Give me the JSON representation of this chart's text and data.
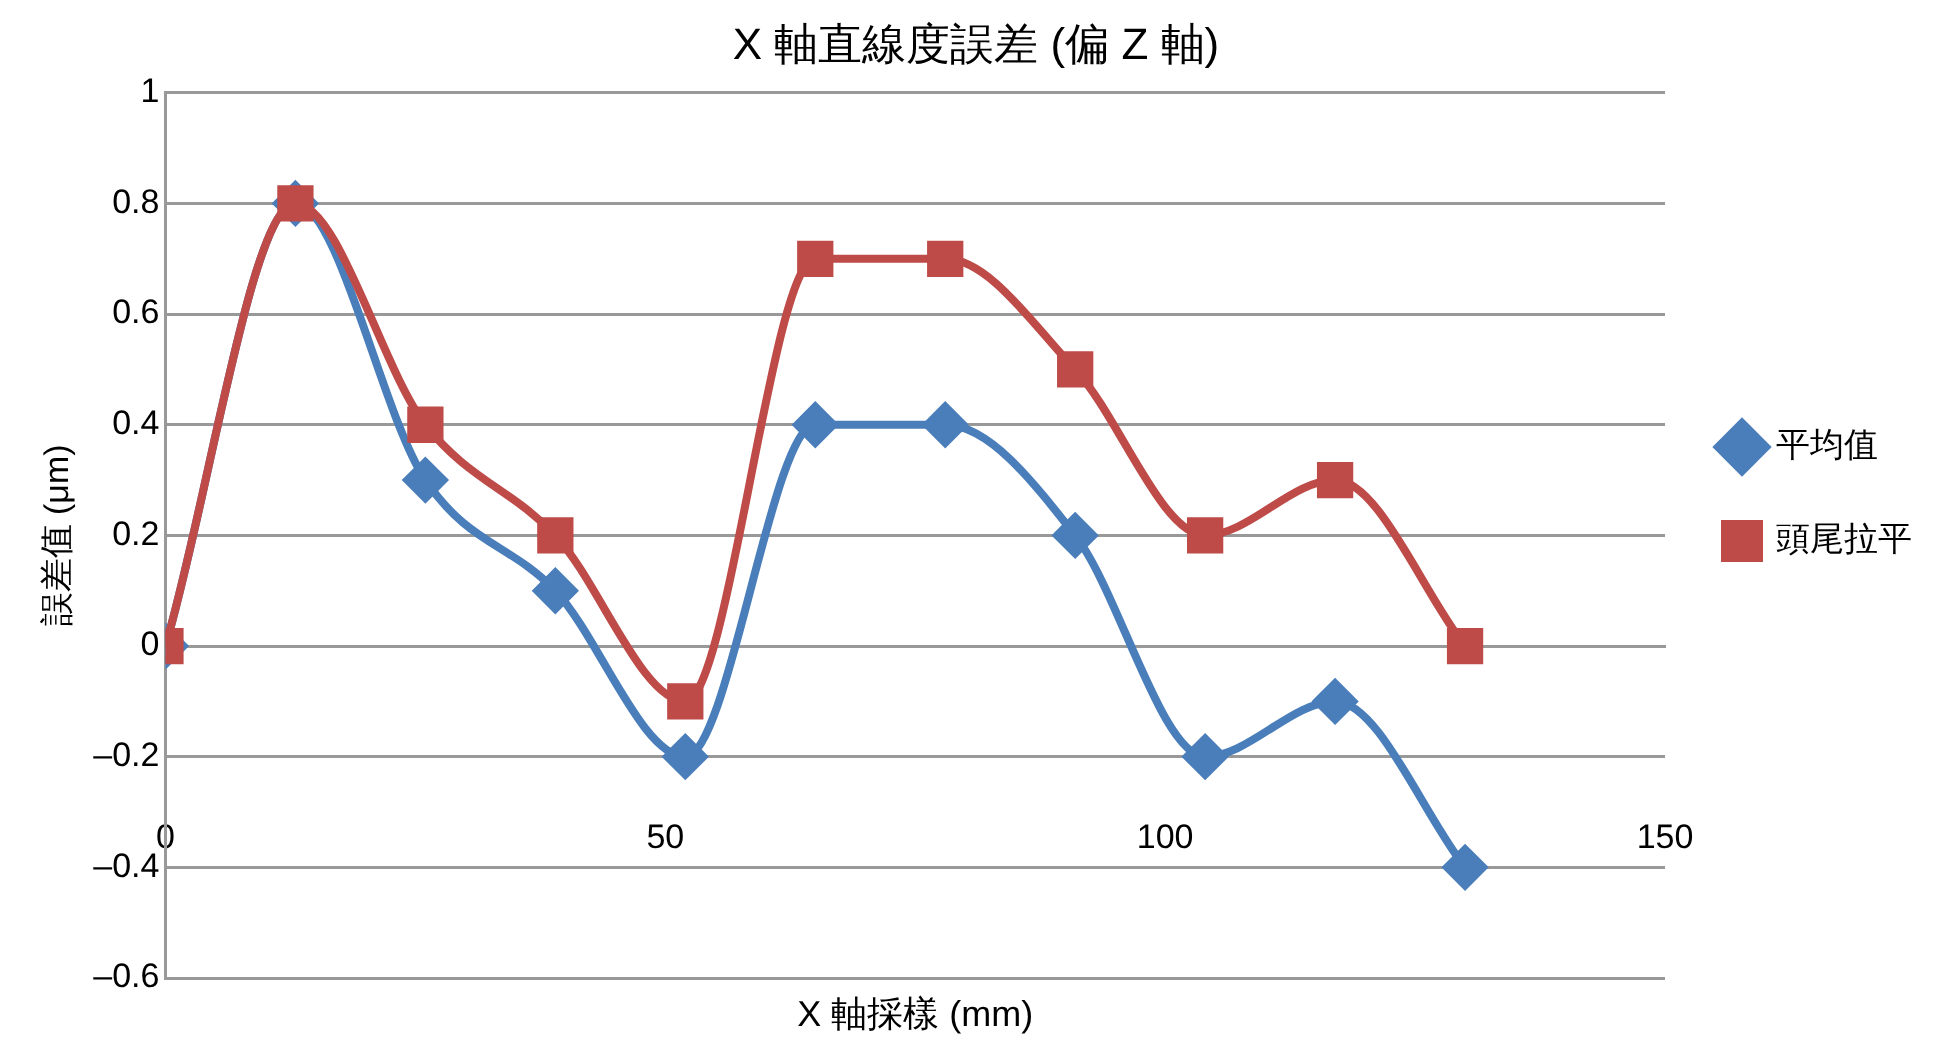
{
  "chart_data": {
    "type": "line",
    "title": "X 軸直線度誤差 (偏 Z 軸)",
    "xlabel": "X 軸採樣 (mm)",
    "ylabel": "誤差值 (μm)",
    "x": [
      0,
      13,
      26,
      39,
      52,
      65,
      78,
      91,
      104,
      117,
      130
    ],
    "series": [
      {
        "name": "平均值",
        "color": "#4a7ebb",
        "marker": "diamond",
        "values": [
          0,
          0.8,
          0.3,
          0.1,
          -0.2,
          0.4,
          0.4,
          0.2,
          -0.2,
          -0.1,
          -0.4
        ]
      },
      {
        "name": "頭尾拉平",
        "color": "#be4b48",
        "marker": "square",
        "values": [
          0,
          0.8,
          0.4,
          0.2,
          -0.1,
          0.7,
          0.7,
          0.5,
          0.2,
          0.3,
          0
        ]
      }
    ],
    "xlim": [
      0,
      150
    ],
    "xticks": [
      0,
      50,
      100,
      150
    ],
    "ylim": [
      -0.6,
      1
    ],
    "yticks": [
      {
        "value": -0.6,
        "label": "–0.6"
      },
      {
        "value": -0.4,
        "label": "–0.4"
      },
      {
        "value": -0.2,
        "label": "–0.2"
      },
      0,
      0.2,
      0.4,
      0.6,
      0.8,
      1
    ],
    "grid": "y",
    "legend": "right",
    "line_style": "solid"
  }
}
